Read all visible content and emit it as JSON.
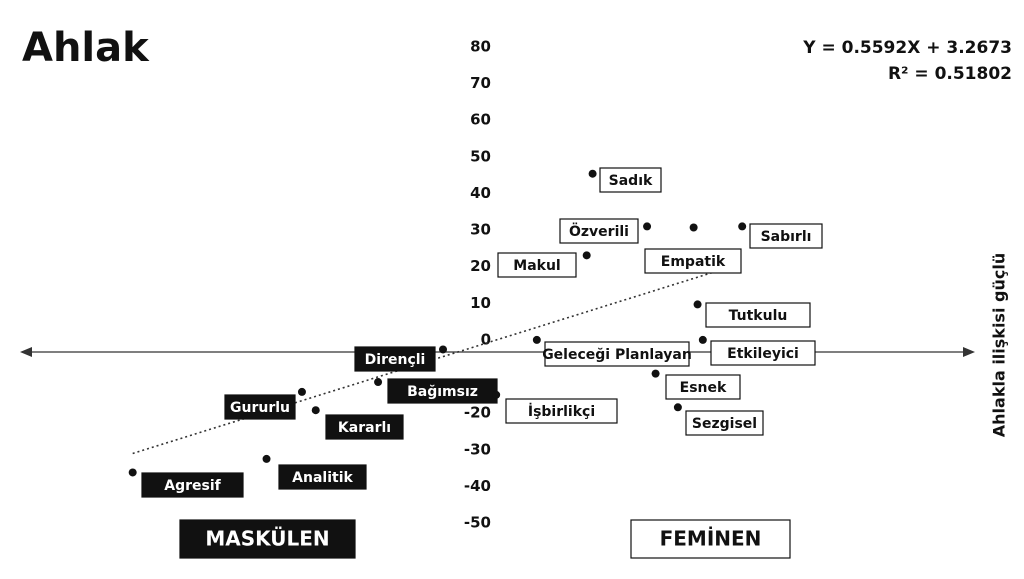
{
  "chart_data": {
    "type": "scatter",
    "title": "Ahlak",
    "equation": "Y = 0.5592X + 3.2673",
    "r_squared": "R² = 0.51802",
    "slope": 0.5592,
    "intercept": 3.2673,
    "y_axis_label": "Ahlakla ilişkisi güçlü",
    "xlim": [
      -80,
      68
    ],
    "ylim": [
      -50,
      80
    ],
    "yticks": [
      80,
      70,
      60,
      50,
      40,
      30,
      20,
      10,
      0,
      -20,
      -30,
      -40,
      -50
    ],
    "series": [
      {
        "name": "MASKÜLEN",
        "color": "#111111",
        "labels": [
          "Dirençli",
          "Bağımsız",
          "Gururlu",
          "Kararlı",
          "Analitik",
          "Agresif"
        ],
        "x": [
          -14,
          -23.9,
          -35.5,
          -33.4,
          -40.9,
          -61.3
        ],
        "values": [
          -2.6,
          -11.5,
          -14.2,
          -19.2,
          -32.5,
          -36.2
        ]
      },
      {
        "name": "FEMİNEN",
        "color": "#ffffff",
        "labels": [
          "Sadık",
          "Özverili",
          "Empatik",
          "Sabırlı",
          "Makul",
          "Tutkulu",
          "Geleceği Planlayan",
          "Etkileyici",
          "Esnek",
          "İşbirlikçi",
          "Sezgisel"
        ],
        "x": [
          8.8,
          17.1,
          24.2,
          31.6,
          7.9,
          24.8,
          0.3,
          25.6,
          18.4,
          -5.9,
          21.8
        ],
        "values": [
          45.4,
          31,
          30.7,
          31,
          23.1,
          9.7,
          0,
          0,
          -9.2,
          -15,
          -18.4
        ]
      }
    ]
  }
}
